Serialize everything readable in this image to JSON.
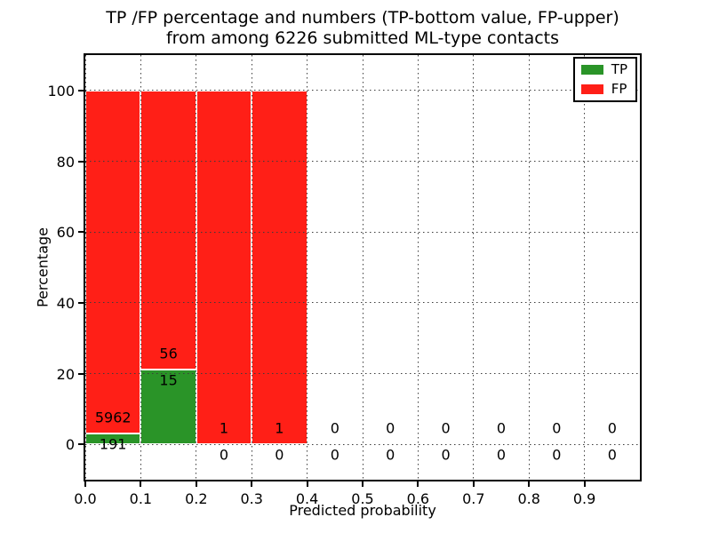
{
  "title": {
    "line1": "TP /FP percentage and numbers (TP-bottom value, FP-upper)",
    "line2": "from among 6226 submitted ML-type contacts"
  },
  "axes": {
    "xlabel": "Predicted probability",
    "ylabel": "Percentage",
    "x_tick_labels": [
      "0.0",
      "0.1",
      "0.2",
      "0.3",
      "0.4",
      "0.5",
      "0.6",
      "0.7",
      "0.8",
      "0.9"
    ],
    "x_tick_values": [
      0.0,
      0.1,
      0.2,
      0.3,
      0.4,
      0.5,
      0.6,
      0.7,
      0.8,
      0.9
    ],
    "y_tick_labels": [
      "0",
      "20",
      "40",
      "60",
      "80",
      "100"
    ],
    "y_tick_values": [
      0,
      20,
      40,
      60,
      80,
      100
    ],
    "xlim": [
      0.0,
      1.0
    ],
    "ylim": [
      -10,
      110
    ],
    "grid": "dotted"
  },
  "legend": {
    "position": "upper right",
    "entries": [
      {
        "label": "TP",
        "color": "#2a9428"
      },
      {
        "label": "FP",
        "color": "#ff1f17"
      }
    ]
  },
  "colors": {
    "tp": "#2a9428",
    "fp": "#ff1f17",
    "bar_edge": "#ffffff",
    "grid": "#3c3c3c",
    "frame": "#000000",
    "background": "#ffffff",
    "text": "#000000"
  },
  "chart_data": {
    "type": "bar",
    "stacked": true,
    "normalized_to": 100,
    "total_contacts": 6226,
    "bin_width": 0.1,
    "bins": [
      {
        "x0": 0.0,
        "x1": 0.1,
        "tp": 191,
        "fp": 5962
      },
      {
        "x0": 0.1,
        "x1": 0.2,
        "tp": 15,
        "fp": 56
      },
      {
        "x0": 0.2,
        "x1": 0.3,
        "tp": 0,
        "fp": 1
      },
      {
        "x0": 0.3,
        "x1": 0.4,
        "tp": 0,
        "fp": 1
      },
      {
        "x0": 0.4,
        "x1": 0.5,
        "tp": 0,
        "fp": 0
      },
      {
        "x0": 0.5,
        "x1": 0.6,
        "tp": 0,
        "fp": 0
      },
      {
        "x0": 0.6,
        "x1": 0.7,
        "tp": 0,
        "fp": 0
      },
      {
        "x0": 0.7,
        "x1": 0.8,
        "tp": 0,
        "fp": 0
      },
      {
        "x0": 0.8,
        "x1": 0.9,
        "tp": 0,
        "fp": 0
      },
      {
        "x0": 0.9,
        "x1": 1.0,
        "tp": 0,
        "fp": 0
      }
    ],
    "fp_labels": [
      "5962",
      "56",
      "1",
      "1",
      "0",
      "0",
      "0",
      "0",
      "0",
      "0"
    ],
    "tp_labels": [
      "191",
      "15",
      "0",
      "0",
      "0",
      "0",
      "0",
      "0",
      "0",
      "0"
    ],
    "tp_percentages": [
      3.1,
      21.1,
      0,
      0,
      0,
      0,
      0,
      0,
      0,
      0
    ],
    "label_offset_pct": {
      "fp_above_tp_top": 4.5,
      "tp_below_tp_top": -3
    }
  }
}
